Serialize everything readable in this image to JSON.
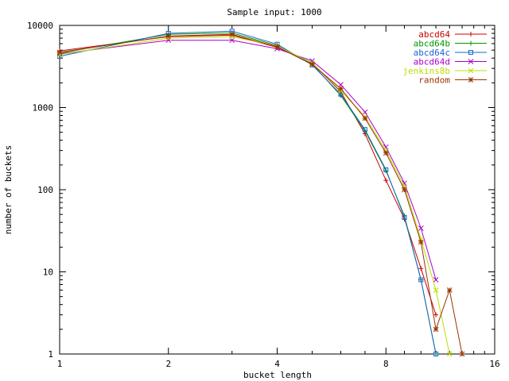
{
  "chart_data": {
    "type": "line",
    "title": "Sample input: 1000",
    "xlabel": "bucket length",
    "ylabel": "number of buckets",
    "xscale": "log2",
    "yscale": "log10",
    "xlim": [
      1,
      16
    ],
    "ylim": [
      1,
      10000
    ],
    "x_ticks": [
      1,
      2,
      4,
      8,
      16
    ],
    "y_ticks": [
      1,
      10,
      100,
      1000,
      10000
    ],
    "grid": false,
    "legend_position": "top-right",
    "series": [
      {
        "name": "abcd64",
        "color": "#cc0000",
        "marker": "plus",
        "x": [
          1,
          2,
          3,
          4,
          5,
          6,
          7,
          8,
          9,
          10,
          11
        ],
        "y": [
          4900,
          7300,
          7600,
          5400,
          3500,
          1550,
          480,
          130,
          44,
          11,
          3
        ]
      },
      {
        "name": "abcd64b",
        "color": "#009900",
        "marker": "plus",
        "x": [
          1,
          2,
          3,
          4,
          5,
          6,
          7,
          8,
          9,
          10,
          11
        ],
        "y": [
          4600,
          7800,
          8100,
          5700,
          3400,
          1400,
          520,
          170,
          48,
          8,
          1
        ]
      },
      {
        "name": "abcd64c",
        "color": "#1a66cc",
        "marker": "square",
        "x": [
          1,
          2,
          3,
          4,
          5,
          6,
          7,
          8,
          9,
          10,
          11
        ],
        "y": [
          4200,
          8000,
          8500,
          5900,
          3300,
          1450,
          540,
          175,
          46,
          8,
          1
        ]
      },
      {
        "name": "abcd64d",
        "color": "#aa00cc",
        "marker": "x",
        "x": [
          1,
          2,
          3,
          4,
          5,
          6,
          7,
          8,
          9,
          10,
          11
        ],
        "y": [
          4500,
          6600,
          6600,
          5200,
          3700,
          1900,
          880,
          330,
          120,
          34,
          8
        ]
      },
      {
        "name": "jenkins8b",
        "color": "#bbdd00",
        "marker": "x",
        "x": [
          1,
          2,
          3,
          4,
          5,
          6,
          7,
          8,
          9,
          10,
          11,
          12
        ],
        "y": [
          4400,
          7000,
          7300,
          5600,
          3500,
          1600,
          780,
          300,
          110,
          25,
          6,
          1
        ]
      },
      {
        "name": "random",
        "color": "#993300",
        "marker": "star",
        "x": [
          1,
          2,
          3,
          4,
          5,
          6,
          7,
          8,
          9,
          10,
          11,
          12,
          13
        ],
        "y": [
          4700,
          7400,
          7800,
          5500,
          3350,
          1700,
          740,
          280,
          100,
          23,
          2,
          6,
          1
        ]
      }
    ]
  }
}
